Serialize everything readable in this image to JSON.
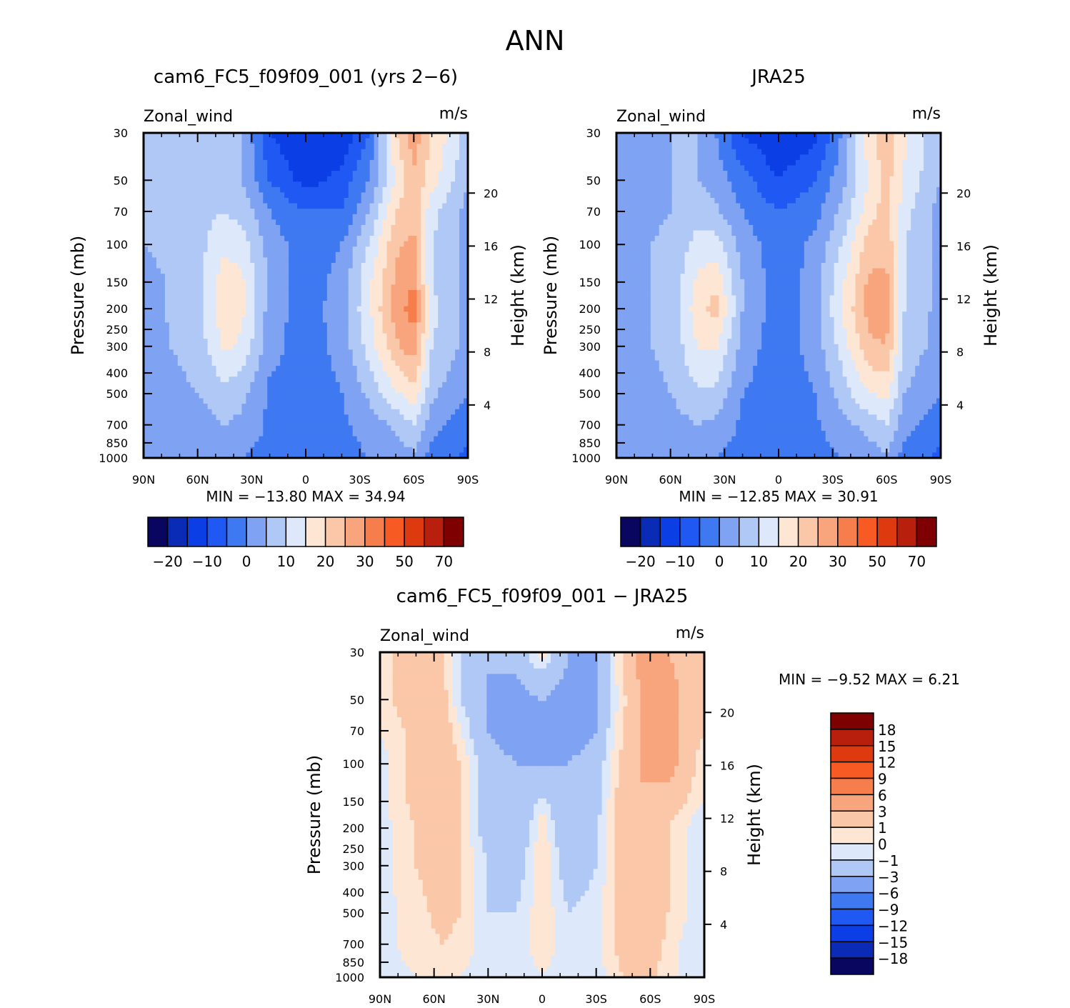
{
  "figure_title": "ANN",
  "colors": {
    "main_scale": [
      "#08065e",
      "#0a2bb5",
      "#0c3ee6",
      "#1f58f2",
      "#3f79f2",
      "#7fa3f2",
      "#b0c8f5",
      "#dde9fb",
      "#fde6d4",
      "#fbc7a9",
      "#f8a57d",
      "#f67d4c",
      "#f75a22",
      "#de3a10",
      "#b81f0c",
      "#7f0000"
    ],
    "diff_scale": [
      "#08065e",
      "#0a2bb5",
      "#0c3ee6",
      "#1f58f2",
      "#3f79f2",
      "#7fa3f2",
      "#b0c8f5",
      "#dde9fb",
      "#fde6d4",
      "#fbc7a9",
      "#f8a57d",
      "#f67d4c",
      "#f75a22",
      "#de3a10",
      "#b81f0c",
      "#7f0000"
    ]
  },
  "chart_data": [
    {
      "type": "heatmap",
      "title": "cam6_FC5_f09f09_001 (yrs 2−6)",
      "left_string": "Zonal_wind",
      "right_string": "m/s",
      "ylabel": "Pressure (mb)",
      "y2label": "Height (km)",
      "x_ticks": [
        "90N",
        "60N",
        "30N",
        "0",
        "30S",
        "60S",
        "90S"
      ],
      "y_ticks": [
        "30",
        "50",
        "70",
        "100",
        "150",
        "200",
        "250",
        "300",
        "400",
        "500",
        "700",
        "850",
        "1000"
      ],
      "y2_ticks": [
        "4",
        "8",
        "12",
        "16",
        "20"
      ],
      "stats": "MIN =  −13.80   MAX =   34.94",
      "colorbar_labels": [
        "−20",
        "−10",
        "0",
        "10",
        "20",
        "30",
        "50",
        "70"
      ],
      "x": [
        90,
        60,
        45,
        35,
        20,
        0,
        -20,
        -35,
        -50,
        -60,
        -70,
        -90
      ],
      "p": [
        30,
        50,
        70,
        100,
        150,
        200,
        300,
        500,
        700,
        1000
      ],
      "u": [
        [
          5,
          8,
          10,
          5,
          -10,
          -15,
          -15,
          -5,
          20,
          28,
          20,
          8
        ],
        [
          5,
          8,
          8,
          5,
          -5,
          -12,
          -8,
          0,
          15,
          24,
          17,
          5
        ],
        [
          5,
          8,
          10,
          8,
          0,
          -5,
          -5,
          5,
          20,
          24,
          12,
          3
        ],
        [
          5,
          8,
          14,
          12,
          3,
          -3,
          0,
          10,
          24,
          26,
          10,
          3
        ],
        [
          3,
          8,
          18,
          16,
          4,
          -3,
          2,
          14,
          26,
          30,
          10,
          3
        ],
        [
          3,
          8,
          19,
          16,
          3,
          -3,
          3,
          14,
          28,
          32,
          12,
          3
        ],
        [
          3,
          7,
          16,
          14,
          2,
          -3,
          2,
          12,
          24,
          28,
          10,
          3
        ],
        [
          2,
          5,
          8,
          6,
          -1,
          -3,
          0,
          6,
          14,
          18,
          6,
          0
        ],
        [
          1,
          3,
          5,
          4,
          -1,
          -2,
          -1,
          2,
          6,
          10,
          2,
          -3
        ],
        [
          0,
          1,
          1,
          0,
          -2,
          -3,
          -2,
          0,
          2,
          4,
          -2,
          -6
        ]
      ]
    },
    {
      "type": "heatmap",
      "title": "JRA25",
      "left_string": "Zonal_wind",
      "right_string": "m/s",
      "ylabel": "Pressure (mb)",
      "y2label": "Height (km)",
      "x_ticks": [
        "90N",
        "60N",
        "30N",
        "0",
        "30S",
        "60S",
        "90S"
      ],
      "y_ticks": [
        "30",
        "50",
        "70",
        "100",
        "150",
        "200",
        "250",
        "300",
        "400",
        "500",
        "700",
        "850",
        "1000"
      ],
      "y2_ticks": [
        "4",
        "8",
        "12",
        "16",
        "20"
      ],
      "stats": "MIN =  −12.85   MAX =   30.91",
      "colorbar_labels": [
        "−20",
        "−10",
        "0",
        "10",
        "20",
        "30",
        "50",
        "70"
      ],
      "x": [
        90,
        60,
        45,
        35,
        20,
        0,
        -20,
        -35,
        -50,
        -60,
        -70,
        -90
      ],
      "p": [
        30,
        50,
        70,
        100,
        150,
        200,
        300,
        500,
        700,
        1000
      ],
      "u": [
        [
          3,
          5,
          5,
          0,
          -10,
          -15,
          -12,
          0,
          18,
          24,
          16,
          5
        ],
        [
          3,
          5,
          5,
          3,
          -3,
          -10,
          -5,
          3,
          15,
          22,
          14,
          5
        ],
        [
          3,
          5,
          8,
          6,
          0,
          -5,
          -2,
          6,
          18,
          22,
          12,
          3
        ],
        [
          3,
          6,
          12,
          12,
          3,
          -3,
          1,
          10,
          22,
          24,
          10,
          3
        ],
        [
          3,
          6,
          16,
          19,
          5,
          -3,
          2,
          14,
          26,
          26,
          10,
          3
        ],
        [
          3,
          6,
          18,
          22,
          5,
          -3,
          2,
          15,
          27,
          27,
          10,
          3
        ],
        [
          3,
          6,
          15,
          16,
          3,
          -3,
          2,
          12,
          24,
          25,
          8,
          3
        ],
        [
          2,
          5,
          9,
          9,
          0,
          -3,
          0,
          7,
          15,
          16,
          5,
          0
        ],
        [
          1,
          3,
          5,
          4,
          -1,
          -2,
          -1,
          3,
          7,
          10,
          2,
          -3
        ],
        [
          0,
          1,
          1,
          0,
          -2,
          -3,
          -2,
          0,
          2,
          4,
          -2,
          -6
        ]
      ]
    },
    {
      "type": "heatmap",
      "title": "cam6_FC5_f09f09_001 − JRA25",
      "left_string": "Zonal_wind",
      "right_string": "m/s",
      "ylabel": "Pressure (mb)",
      "y2label": "Height (km)",
      "x_ticks": [
        "90N",
        "60N",
        "30N",
        "0",
        "30S",
        "60S",
        "90S"
      ],
      "y_ticks": [
        "30",
        "50",
        "70",
        "100",
        "150",
        "200",
        "250",
        "300",
        "400",
        "500",
        "700",
        "850",
        "1000"
      ],
      "y2_ticks": [
        "4",
        "8",
        "12",
        "16",
        "20"
      ],
      "stats": "MIN =   −9.52   MAX =    6.21",
      "colorbar_labels": [
        "18",
        "15",
        "12",
        "9",
        "6",
        "3",
        "1",
        "0",
        "−1",
        "−3",
        "−6",
        "−9",
        "−12",
        "−15",
        "−18"
      ],
      "x": [
        90,
        70,
        55,
        45,
        30,
        15,
        0,
        -15,
        -30,
        -40,
        -55,
        -70,
        -90
      ],
      "p": [
        30,
        50,
        70,
        100,
        150,
        200,
        300,
        500,
        700,
        1000
      ],
      "u": [
        [
          0.5,
          2,
          1,
          -1,
          -3,
          -2,
          0.5,
          -3,
          -3,
          0,
          4,
          3,
          1
        ],
        [
          0.5,
          2,
          1.5,
          -1,
          -3,
          -4,
          -3,
          -4,
          -3,
          -0.5,
          3,
          4,
          1
        ],
        [
          0,
          1.5,
          2,
          0,
          -3,
          -4,
          -4,
          -4,
          -3,
          0,
          3,
          4,
          1
        ],
        [
          -0.5,
          1.5,
          2,
          1,
          -2,
          -3,
          -3,
          -3,
          -2,
          0.5,
          3,
          4,
          0
        ],
        [
          -0.5,
          1.5,
          2,
          1,
          -2,
          -3,
          -0.5,
          -3,
          -2,
          1,
          3,
          2,
          0
        ],
        [
          -0.5,
          1,
          2,
          1,
          -2,
          -3,
          0.8,
          -3,
          -1,
          1,
          3,
          1,
          -1
        ],
        [
          -0.5,
          1,
          2,
          1,
          -1,
          -2,
          0.8,
          -2,
          -1,
          1,
          3,
          1,
          -1
        ],
        [
          -0.5,
          0.5,
          1.5,
          1,
          -1,
          -1,
          0.7,
          -1,
          -0.5,
          1,
          3,
          1,
          -1
        ],
        [
          -0.5,
          0.5,
          1,
          0.5,
          -0.5,
          -0.5,
          0.5,
          -0.5,
          -0.5,
          1,
          3,
          0.5,
          -1
        ],
        [
          -0.5,
          0,
          0.5,
          0,
          -0.5,
          -0.5,
          0,
          -0.5,
          -0.5,
          0.5,
          2,
          0,
          0
        ]
      ]
    }
  ]
}
